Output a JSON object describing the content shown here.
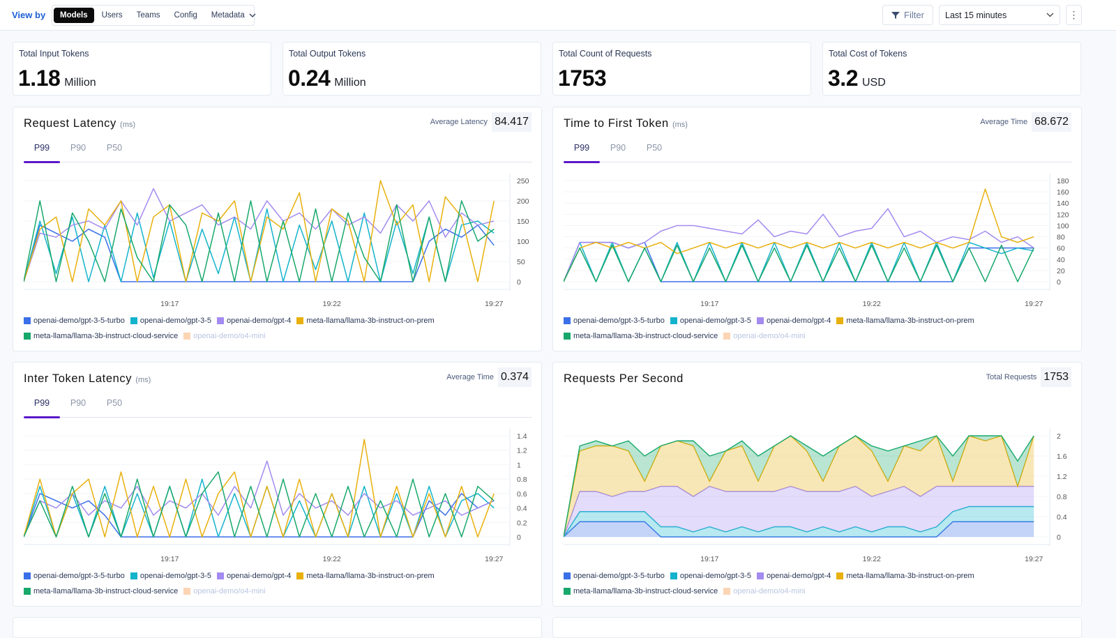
{
  "topbar": {
    "view_by_label": "View by",
    "view_options": [
      {
        "label": "Models",
        "active": true
      },
      {
        "label": "Users"
      },
      {
        "label": "Teams"
      },
      {
        "label": "Config"
      },
      {
        "label": "Metadata"
      }
    ],
    "filter_label": "Filter",
    "time_range": "Last 15 minutes",
    "icons": {
      "filter": "filter-icon",
      "chevron": "chevron-down-icon",
      "more": "kebab-menu-icon"
    }
  },
  "stats": [
    {
      "label": "Total Input Tokens",
      "value": "1.18",
      "unit": "Million"
    },
    {
      "label": "Total Output Tokens",
      "value": "0.24",
      "unit": "Million"
    },
    {
      "label": "Total Count of Requests",
      "value": "1753",
      "unit": ""
    },
    {
      "label": "Total Cost of Tokens",
      "value": "3.2",
      "unit": "USD"
    }
  ],
  "legend": [
    {
      "name": "openai-demo/gpt-3-5-turbo",
      "color": "#3b6fe8"
    },
    {
      "name": "openai-demo/gpt-3-5",
      "color": "#14b3cc"
    },
    {
      "name": "openai-demo/gpt-4",
      "color": "#a38bf0"
    },
    {
      "name": "meta-llama/llama-3b-instruct-on-prem",
      "color": "#e8b00c"
    },
    {
      "name": "meta-llama/llama-3b-instruct-cloud-service",
      "color": "#18a86b"
    },
    {
      "name": "openai-demo/o4-mini",
      "color": "#fcd5b5",
      "disabled": true
    }
  ],
  "panels": [
    {
      "title": "Request Latency",
      "unit": "(ms)",
      "metric_label": "Average Latency",
      "metric_value": "84.417",
      "tabs": [
        "P99",
        "P90",
        "P50"
      ],
      "active_tab": "P99"
    },
    {
      "title": "Time to First Token",
      "unit": "(ms)",
      "metric_label": "Average Time",
      "metric_value": "68.672",
      "tabs": [
        "P99",
        "P90",
        "P50"
      ],
      "active_tab": "P99"
    },
    {
      "title": "Inter Token Latency",
      "unit": "(ms)",
      "metric_label": "Average Time",
      "metric_value": "0.374",
      "tabs": [
        "P99",
        "P90",
        "P50"
      ],
      "active_tab": "P99"
    },
    {
      "title": "Requests Per Second",
      "unit": "",
      "metric_label": "Total Requests",
      "metric_value": "1753",
      "tabs": []
    }
  ],
  "chart_data": [
    {
      "type": "line",
      "title": "Request Latency",
      "x_ticks": [
        "19:17",
        "19:22",
        "19:27"
      ],
      "y_ticks": [
        "0",
        "50",
        "100",
        "150",
        "200",
        "250"
      ],
      "ylim": [
        0,
        250
      ],
      "grid": true,
      "legend_placement": "bottom",
      "x": [
        "19:12:30",
        "19:13:00",
        "19:13:30",
        "19:14:00",
        "19:14:30",
        "19:15:00",
        "19:15:30",
        "19:16:00",
        "19:16:30",
        "19:17:00",
        "19:17:30",
        "19:18:00",
        "19:18:30",
        "19:19:00",
        "19:19:30",
        "19:20:00",
        "19:20:30",
        "19:21:00",
        "19:21:30",
        "19:22:00",
        "19:22:30",
        "19:23:00",
        "19:23:30",
        "19:24:00",
        "19:24:30",
        "19:25:00",
        "19:25:30",
        "19:26:00",
        "19:26:30",
        "19:27:00"
      ],
      "series": [
        {
          "name": "openai-demo/gpt-3-5-turbo",
          "values": [
            0,
            140,
            120,
            100,
            130,
            110,
            0,
            0,
            0,
            0,
            0,
            0,
            0,
            0,
            0,
            0,
            0,
            0,
            0,
            0,
            0,
            0,
            0,
            0,
            0,
            100,
            130,
            110,
            140,
            90
          ]
        },
        {
          "name": "openai-demo/gpt-3-5",
          "values": [
            0,
            150,
            20,
            160,
            0,
            140,
            0,
            170,
            10,
            150,
            0,
            130,
            20,
            160,
            0,
            180,
            0,
            140,
            30,
            150,
            0,
            170,
            0,
            150,
            20,
            160,
            0,
            140,
            150,
            120
          ]
        },
        {
          "name": "openai-demo/gpt-4",
          "values": [
            0,
            120,
            110,
            140,
            150,
            130,
            200,
            140,
            230,
            150,
            170,
            190,
            140,
            160,
            130,
            200,
            150,
            170,
            130,
            180,
            140,
            160,
            120,
            190,
            150,
            200,
            110,
            170,
            140,
            150
          ]
        },
        {
          "name": "meta-llama/llama-3b-instruct-on-prem",
          "values": [
            0,
            130,
            160,
            0,
            180,
            140,
            200,
            0,
            160,
            190,
            0,
            170,
            150,
            200,
            0,
            160,
            130,
            220,
            0,
            180,
            150,
            0,
            250,
            140,
            190,
            0,
            210,
            160,
            0,
            200
          ]
        },
        {
          "name": "meta-llama/llama-3b-instruct-cloud-service",
          "values": [
            0,
            200,
            0,
            170,
            100,
            0,
            180,
            60,
            0,
            190,
            140,
            0,
            170,
            0,
            200,
            0,
            150,
            0,
            180,
            0,
            170,
            60,
            0,
            190,
            0,
            160,
            0,
            200,
            100,
            130
          ]
        }
      ]
    },
    {
      "type": "line",
      "title": "Time to First Token",
      "x_ticks": [
        "19:17",
        "19:22",
        "19:27"
      ],
      "y_ticks": [
        "0",
        "20",
        "40",
        "60",
        "80",
        "100",
        "120",
        "140",
        "160",
        "180"
      ],
      "ylim": [
        0,
        180
      ],
      "grid": true,
      "legend_placement": "bottom",
      "x": [
        "19:12:30",
        "19:13:00",
        "19:13:30",
        "19:14:00",
        "19:14:30",
        "19:15:00",
        "19:15:30",
        "19:16:00",
        "19:16:30",
        "19:17:00",
        "19:17:30",
        "19:18:00",
        "19:18:30",
        "19:19:00",
        "19:19:30",
        "19:20:00",
        "19:20:30",
        "19:21:00",
        "19:21:30",
        "19:22:00",
        "19:22:30",
        "19:23:00",
        "19:23:30",
        "19:24:00",
        "19:24:30",
        "19:25:00",
        "19:25:30",
        "19:26:00",
        "19:26:30",
        "19:27:00"
      ],
      "series": [
        {
          "name": "openai-demo/gpt-3-5-turbo",
          "values": [
            0,
            70,
            70,
            70,
            60,
            70,
            0,
            0,
            0,
            0,
            0,
            0,
            0,
            0,
            0,
            0,
            0,
            0,
            0,
            0,
            0,
            0,
            0,
            0,
            0,
            60,
            60,
            60,
            60,
            60
          ]
        },
        {
          "name": "openai-demo/gpt-3-5",
          "values": [
            0,
            70,
            0,
            70,
            0,
            60,
            0,
            70,
            0,
            70,
            0,
            70,
            0,
            70,
            0,
            70,
            0,
            70,
            0,
            70,
            0,
            70,
            0,
            70,
            0,
            70,
            60,
            50,
            60,
            55
          ]
        },
        {
          "name": "openai-demo/gpt-4",
          "values": [
            0,
            70,
            70,
            70,
            60,
            70,
            90,
            100,
            100,
            95,
            90,
            85,
            110,
            80,
            90,
            85,
            120,
            80,
            90,
            95,
            130,
            80,
            90,
            70,
            80,
            75,
            90,
            70,
            80,
            60
          ]
        },
        {
          "name": "meta-llama/llama-3b-instruct-on-prem",
          "values": [
            0,
            60,
            70,
            60,
            70,
            60,
            70,
            50,
            60,
            70,
            60,
            70,
            60,
            70,
            60,
            70,
            60,
            70,
            60,
            70,
            60,
            70,
            60,
            70,
            60,
            70,
            165,
            80,
            70,
            80
          ]
        },
        {
          "name": "meta-llama/llama-3b-instruct-cloud-service",
          "values": [
            0,
            60,
            0,
            65,
            0,
            60,
            0,
            65,
            0,
            60,
            0,
            65,
            0,
            60,
            0,
            65,
            0,
            60,
            0,
            65,
            0,
            60,
            0,
            65,
            0,
            60,
            0,
            65,
            0,
            60
          ]
        }
      ]
    },
    {
      "type": "line",
      "title": "Inter Token Latency",
      "x_ticks": [
        "19:17",
        "19:22",
        "19:27"
      ],
      "y_ticks": [
        "0",
        "0.2",
        "0.4",
        "0.6",
        "0.8",
        "1",
        "1.2",
        "1.4"
      ],
      "ylim": [
        0,
        1.4
      ],
      "grid": true,
      "legend_placement": "bottom",
      "x": [
        "19:12:30",
        "19:13:00",
        "19:13:30",
        "19:14:00",
        "19:14:30",
        "19:15:00",
        "19:15:30",
        "19:16:00",
        "19:16:30",
        "19:17:00",
        "19:17:30",
        "19:18:00",
        "19:18:30",
        "19:19:00",
        "19:19:30",
        "19:20:00",
        "19:20:30",
        "19:21:00",
        "19:21:30",
        "19:22:00",
        "19:22:30",
        "19:23:00",
        "19:23:30",
        "19:24:00",
        "19:24:30",
        "19:25:00",
        "19:25:30",
        "19:26:00",
        "19:26:30",
        "19:27:00"
      ],
      "series": [
        {
          "name": "openai-demo/gpt-3-5-turbo",
          "values": [
            0,
            0.6,
            0.5,
            0.4,
            0.5,
            0.3,
            0,
            0,
            0,
            0,
            0,
            0,
            0,
            0,
            0,
            0,
            0,
            0,
            0,
            0,
            0,
            0,
            0,
            0,
            0,
            0.5,
            0.3,
            0.6,
            0.4,
            0.5
          ]
        },
        {
          "name": "openai-demo/gpt-3-5",
          "values": [
            0,
            0.7,
            0,
            0.6,
            0,
            0.7,
            0,
            0.6,
            0,
            0.7,
            0,
            0.8,
            0,
            0.6,
            0,
            0.7,
            0,
            0.5,
            0,
            0.6,
            0,
            0.7,
            0,
            0.6,
            0,
            0.7,
            0,
            0.5,
            0.6,
            0.4
          ]
        },
        {
          "name": "openai-demo/gpt-4",
          "values": [
            0,
            0.5,
            0.4,
            0.6,
            0.3,
            0.5,
            0.4,
            0.7,
            0.3,
            0.5,
            0.4,
            0.6,
            0.3,
            0.7,
            0.4,
            1.05,
            0.3,
            0.6,
            0.4,
            0.5,
            0.3,
            0.6,
            0.4,
            0.5,
            0.3,
            0.4,
            0.5,
            0.3,
            0.4,
            0.5
          ]
        },
        {
          "name": "meta-llama/llama-3b-instruct-on-prem",
          "values": [
            0,
            0.8,
            0,
            0.6,
            0.8,
            0,
            0.9,
            0,
            0.7,
            0,
            0.8,
            0,
            0.6,
            0.9,
            0,
            0.7,
            0,
            0.8,
            0,
            0.6,
            0,
            1.35,
            0,
            0.7,
            0,
            0.6,
            0,
            0.7,
            0,
            0.6
          ]
        },
        {
          "name": "meta-llama/llama-3b-instruct-cloud-service",
          "values": [
            0,
            0.5,
            0,
            0.7,
            0,
            0.6,
            0,
            0.8,
            0,
            0.7,
            0,
            0.6,
            0.9,
            0,
            0.7,
            0,
            0.8,
            0,
            0.6,
            0,
            0.7,
            0,
            0.5,
            0,
            0.8,
            0,
            0.6,
            0,
            0.7,
            0.5
          ]
        }
      ]
    },
    {
      "type": "area",
      "stacked": true,
      "title": "Requests Per Second",
      "x_ticks": [
        "19:17",
        "19:22",
        "19:27"
      ],
      "y_ticks": [
        "0",
        "0.4",
        "0.8",
        "1.2",
        "1.6",
        "2"
      ],
      "ylim": [
        0,
        2
      ],
      "grid": true,
      "legend_placement": "bottom",
      "x": [
        "19:12:30",
        "19:13:00",
        "19:13:30",
        "19:14:00",
        "19:14:30",
        "19:15:00",
        "19:15:30",
        "19:16:00",
        "19:16:30",
        "19:17:00",
        "19:17:30",
        "19:18:00",
        "19:18:30",
        "19:19:00",
        "19:19:30",
        "19:20:00",
        "19:20:30",
        "19:21:00",
        "19:21:30",
        "19:22:00",
        "19:22:30",
        "19:23:00",
        "19:23:30",
        "19:24:00",
        "19:24:30",
        "19:25:00",
        "19:25:30",
        "19:26:00",
        "19:26:30",
        "19:27:00"
      ],
      "series": [
        {
          "name": "openai-demo/gpt-3-5-turbo",
          "values": [
            0,
            0.3,
            0.3,
            0.3,
            0.3,
            0.3,
            0,
            0,
            0,
            0,
            0,
            0,
            0,
            0,
            0,
            0,
            0,
            0,
            0,
            0,
            0,
            0,
            0,
            0,
            0.3,
            0.3,
            0.3,
            0.3,
            0.3,
            0.3
          ]
        },
        {
          "name": "openai-demo/gpt-3-5",
          "values": [
            0,
            0.2,
            0.2,
            0.2,
            0.2,
            0.2,
            0.2,
            0.2,
            0.1,
            0.2,
            0.1,
            0.2,
            0.1,
            0.2,
            0.2,
            0.1,
            0.2,
            0.1,
            0.2,
            0.1,
            0.2,
            0.2,
            0.1,
            0.2,
            0.2,
            0.3,
            0.3,
            0.3,
            0.3,
            0.3
          ]
        },
        {
          "name": "openai-demo/gpt-4",
          "values": [
            0,
            0.4,
            0.4,
            0.3,
            0.4,
            0.4,
            0.8,
            0.8,
            0.7,
            0.8,
            0.8,
            0.7,
            0.8,
            0.7,
            0.8,
            0.8,
            0.7,
            0.8,
            0.8,
            0.7,
            0.7,
            0.8,
            0.7,
            0.8,
            0.5,
            0.4,
            0.4,
            0.4,
            0.4,
            0.4
          ]
        },
        {
          "name": "meta-llama/llama-3b-instruct-on-prem",
          "values": [
            0,
            0.8,
            0.9,
            1.0,
            0.8,
            0.2,
            0.8,
            0.9,
            1.0,
            0.1,
            0.8,
            0.9,
            0.2,
            0.9,
            1.0,
            0.8,
            0.2,
            0.9,
            1.0,
            0.9,
            0.2,
            0.8,
            0.9,
            1.0,
            0.1,
            1.0,
            0.9,
            1.0,
            0,
            1.0
          ]
        },
        {
          "name": "meta-llama/llama-3b-instruct-cloud-service",
          "values": [
            0,
            0.1,
            0.1,
            0,
            0.2,
            0.5,
            0,
            0,
            0.1,
            0.5,
            0,
            0.1,
            0.5,
            0,
            0,
            0.1,
            0.5,
            0,
            0,
            0.1,
            0.6,
            0,
            0.2,
            0,
            0.5,
            0,
            0.1,
            0,
            0.5,
            0
          ]
        }
      ]
    }
  ]
}
